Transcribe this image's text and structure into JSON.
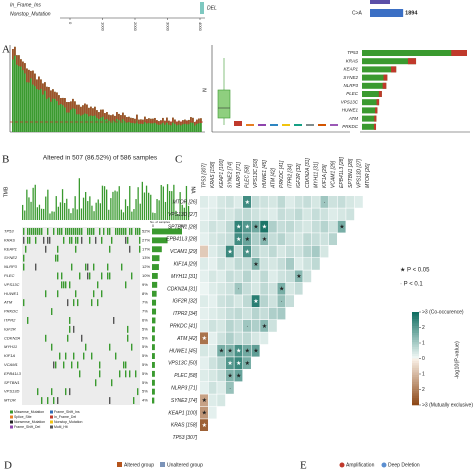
{
  "panel_a": {
    "variant_labels": [
      "In_Frame_Ins",
      "Nonstop_Mutation"
    ],
    "del_label": "DEL",
    "axis_ticks": [
      0,
      1000,
      2000,
      3000,
      4000
    ],
    "snv_label": "C>A",
    "snv_count": 1894,
    "box_axis_label": "N",
    "top_genes": [
      "TP53",
      "KRAS",
      "KEAP1",
      "SYNE2",
      "NLRP3",
      "PLEC",
      "VPS13C",
      "HUWE1",
      "ATM",
      "PRKDC"
    ],
    "top_gene_values": [
      307,
      158,
      100,
      74,
      71,
      58,
      50,
      45,
      42,
      41
    ]
  },
  "panel_b": {
    "letter": "B",
    "title": "Altered in 507 (86.52%) of 586 samples",
    "tmb_label": "TMB",
    "na_label": "NA",
    "samples_label": "No. of samples",
    "samples_min": 0,
    "samples_max": 307,
    "rows": [
      {
        "gene": "TP53",
        "value": 52,
        "label": "52%"
      },
      {
        "gene": "KRAS",
        "value": 27,
        "label": "27%"
      },
      {
        "gene": "KEAP1",
        "value": 17,
        "label": "17%"
      },
      {
        "gene": "SYNE2",
        "value": 13,
        "label": "13%"
      },
      {
        "gene": "NLRP3",
        "value": 12,
        "label": "12%"
      },
      {
        "gene": "PLEC",
        "value": 10,
        "label": "10%"
      },
      {
        "gene": "VPS13C",
        "value": 9,
        "label": "9%"
      },
      {
        "gene": "HUWE1",
        "value": 8,
        "label": "8%"
      },
      {
        "gene": "ATM",
        "value": 7,
        "label": "7%"
      },
      {
        "gene": "PRKDC",
        "value": 7,
        "label": "7%"
      },
      {
        "gene": "ITPR2",
        "value": 6,
        "label": "6%"
      },
      {
        "gene": "IGF2R",
        "value": 5,
        "label": "5%"
      },
      {
        "gene": "CDKN2A",
        "value": 5,
        "label": "5%"
      },
      {
        "gene": "MYH11",
        "value": 5,
        "label": "5%"
      },
      {
        "gene": "KIF1A",
        "value": 5,
        "label": "5%"
      },
      {
        "gene": "VCAM1",
        "value": 5,
        "label": "5%"
      },
      {
        "gene": "EPB41L3",
        "value": 5,
        "label": "5%"
      },
      {
        "gene": "SPTBN1",
        "value": 5,
        "label": "5%"
      },
      {
        "gene": "VPS13D",
        "value": 5,
        "label": "5%"
      },
      {
        "gene": "MTOR",
        "value": 4,
        "label": "4%"
      }
    ],
    "legend": [
      "Missense_Mutation",
      "Frame_Shift_Ins",
      "Splice_Site",
      "In_Frame_Del",
      "Nonsense_Mutation",
      "Nonstop_Mutation",
      "Frame_Shift_Del",
      "Multi_Hit"
    ]
  },
  "panel_c": {
    "letter": "C",
    "genes": [
      "TP53 [307]",
      "KRAS [158]",
      "KEAP1 [100]",
      "SYNE2 [74]",
      "NLRP3 [71]",
      "PLEC [58]",
      "VPS13C [50]",
      "HUWE1 [45]",
      "ATM [42]",
      "PRKDC [41]",
      "ITPR2 [34]",
      "IGF2R [32]",
      "CDKN2A [31]",
      "MYH11 [31]",
      "KIF1A [29]",
      "VCAM1 [29]",
      "EPB41L3 [28]",
      "SPTBN1 [28]",
      "VPS13D [27]",
      "MTOR [26]"
    ],
    "matrix": [
      [],
      [
        -2.5
      ],
      [
        -1.6,
        0.2
      ],
      [
        -1.4,
        0.3,
        0.4
      ],
      [
        0.2,
        0.5,
        0.3,
        1.2
      ],
      [
        0.3,
        0.4,
        0.6,
        1.5,
        1.8
      ],
      [
        0.2,
        0.5,
        0.8,
        2.1,
        2.4,
        1.6
      ],
      [
        0.4,
        0.3,
        1.6,
        1.5,
        2.2,
        1.7,
        1.9
      ],
      [
        -2.2,
        0.2,
        0.5,
        0.9,
        0.6,
        0.7,
        0.4,
        0.3
      ],
      [
        0.3,
        0.5,
        0.4,
        0.8,
        0.6,
        1.1,
        0.9,
        1.4,
        0.5
      ],
      [
        0.2,
        0.3,
        0.4,
        0.6,
        0.7,
        0.5,
        0.8,
        0.6,
        0.9,
        1.0
      ],
      [
        0.3,
        0.2,
        0.5,
        0.6,
        0.4,
        0.7,
        2.6,
        0.8,
        0.5,
        1.2,
        0.6
      ],
      [
        0.1,
        0.3,
        0.4,
        0.5,
        1.1,
        0.6,
        0.4,
        0.7,
        0.5,
        1.6,
        0.4,
        0.6
      ],
      [
        0.2,
        0.4,
        0.3,
        0.6,
        0.5,
        0.8,
        0.4,
        0.7,
        0.3,
        0.5,
        0.6,
        1.4,
        0.5
      ],
      [
        0.3,
        0.2,
        0.5,
        0.4,
        0.7,
        0.6,
        1.5,
        0.5,
        0.4,
        0.6,
        1.0,
        0.3,
        0.5,
        0.7
      ],
      [
        -0.7,
        0.3,
        0.5,
        2.4,
        0.6,
        2.2,
        0.8,
        0.5,
        0.7,
        0.4,
        0.6,
        0.5,
        0.8,
        1.0,
        0.4
      ],
      [
        0.2,
        0.4,
        0.5,
        0.6,
        2.3,
        1.8,
        0.9,
        1.4,
        0.6,
        0.8,
        0.5,
        0.4,
        0.7,
        0.6,
        0.5,
        0.8
      ],
      [
        0.3,
        0.5,
        0.4,
        0.7,
        2.5,
        2.1,
        1.7,
        2.8,
        0.9,
        0.6,
        0.7,
        0.5,
        0.4,
        0.6,
        0.8,
        0.5,
        1.6
      ],
      [
        0.2,
        0.3,
        0.5,
        0.4,
        0.6,
        0.7,
        0.5,
        0.4,
        0.3,
        0.6,
        0.5,
        0.7,
        0.4,
        0.6,
        0.5,
        0.3,
        0.4,
        0.5
      ],
      [
        0.3,
        0.2,
        0.4,
        0.5,
        0.3,
        2.3,
        0.6,
        0.5,
        0.4,
        0.7,
        0.3,
        0.5,
        0.6,
        0.4,
        1.1,
        0.5,
        0.6,
        0.4,
        0.3
      ]
    ],
    "sig_labels": [
      "★  P < 0.05",
      "·  P < 0.1"
    ],
    "colorbar_lim": [
      -3,
      3
    ],
    "colorbar_ticks": [
      {
        "value": 3,
        "label": ">3 (Co-occurence)"
      },
      2,
      1,
      0,
      {
        "value": -1,
        "label": "1"
      },
      {
        "value": -2,
        "label": "2"
      },
      {
        "value": -3,
        "label": ">3 (Mutually exclusive)"
      }
    ],
    "colorbar_title": "-log10(P-value)"
  },
  "panel_d": {
    "letter": "D",
    "legend": [
      "Altered group",
      "Unaltered group"
    ]
  },
  "panel_e": {
    "letter": "E",
    "legend": [
      "Amplification",
      "Deep Deletion"
    ]
  }
}
